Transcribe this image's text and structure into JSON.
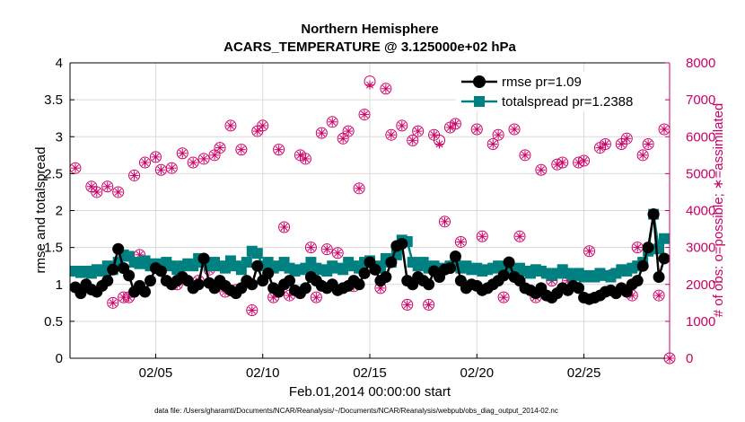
{
  "chart_data": {
    "type": "line",
    "title": [
      "Northern Hemisphere",
      "ACARS_TEMPERATURE @ 3.125000e+02 hPa"
    ],
    "xlabel": "Feb.01,2014 00:00:00 start",
    "ylabel_left": "rmse and totalspread",
    "ylabel_right": "# of obs: o=possible; ∗=assimilated",
    "footer": "data file: /Users/gharamti/Documents/NCAR/Reanalysis/~/Documents/NCAR/Reanalysis/webpub/obs_diag_output_2014-02.nc",
    "xlim": [
      1,
      29
    ],
    "x_ticks": [
      5,
      10,
      15,
      20,
      25
    ],
    "x_tick_labels": [
      "02/05",
      "02/10",
      "02/15",
      "02/20",
      "02/25"
    ],
    "ylim_left": [
      0,
      4
    ],
    "y_ticks_left": [
      0,
      0.5,
      1,
      1.5,
      2,
      2.5,
      3,
      3.5,
      4
    ],
    "y_tick_labels_left": [
      "0",
      "0.5",
      "1",
      "1.5",
      "2",
      "2.5",
      "3",
      "3.5",
      "4"
    ],
    "ylim_right": [
      0,
      8000
    ],
    "y_ticks_right": [
      0,
      1000,
      2000,
      3000,
      4000,
      5000,
      6000,
      7000,
      8000
    ],
    "y_tick_labels_right": [
      "0",
      "1000",
      "2000",
      "3000",
      "4000",
      "5000",
      "6000",
      "7000",
      "8000"
    ],
    "colors": {
      "rmse": "#000000",
      "spread": "#008080",
      "obs": "#cc0066",
      "axis": "#000000",
      "grid": "#d9d9d9"
    },
    "legend": [
      {
        "name": "rmse pr=1.09",
        "series": "rmse"
      },
      {
        "name": "totalspread pr=1.2388",
        "series": "spread"
      }
    ],
    "legend_location": "top-right",
    "series": [
      {
        "name": "rmse",
        "x": [
          1.25,
          1.5,
          1.75,
          2.0,
          2.25,
          2.5,
          2.75,
          3.0,
          3.25,
          3.5,
          3.75,
          4.0,
          4.25,
          4.5,
          4.75,
          5.0,
          5.25,
          5.5,
          5.75,
          6.0,
          6.25,
          6.5,
          6.75,
          7.0,
          7.25,
          7.5,
          7.75,
          8.0,
          8.25,
          8.5,
          8.75,
          9.0,
          9.25,
          9.5,
          9.75,
          10.0,
          10.25,
          10.5,
          10.75,
          11.0,
          11.25,
          11.5,
          11.75,
          12.0,
          12.25,
          12.5,
          12.75,
          13.0,
          13.25,
          13.5,
          13.75,
          14.0,
          14.25,
          14.5,
          14.75,
          15.0,
          15.25,
          15.5,
          15.75,
          16.0,
          16.25,
          16.5,
          16.75,
          17.0,
          17.25,
          17.5,
          17.75,
          18.0,
          18.25,
          18.5,
          18.75,
          19.0,
          19.25,
          19.5,
          19.75,
          20.0,
          20.25,
          20.5,
          20.75,
          21.0,
          21.25,
          21.5,
          21.75,
          22.0,
          22.25,
          22.5,
          22.75,
          23.0,
          23.25,
          23.5,
          23.75,
          24.0,
          24.25,
          24.5,
          24.75,
          25.0,
          25.25,
          25.5,
          25.75,
          26.0,
          26.25,
          26.5,
          26.75,
          27.0,
          27.25,
          27.5,
          27.75,
          28.0,
          28.25,
          28.5,
          28.75
        ],
        "values": [
          0.96,
          0.88,
          1.0,
          0.93,
          0.9,
          0.98,
          1.05,
          1.2,
          1.48,
          1.22,
          1.12,
          0.9,
          0.98,
          0.9,
          1.05,
          1.22,
          1.18,
          1.05,
          1.0,
          1.05,
          1.1,
          1.05,
          0.95,
          1.0,
          1.35,
          1.02,
          0.95,
          1.05,
          0.98,
          0.92,
          0.88,
          0.95,
          1.05,
          1.0,
          1.25,
          1.05,
          1.15,
          0.95,
          0.9,
          1.0,
          1.05,
          0.92,
          0.88,
          0.95,
          1.1,
          1.05,
          0.98,
          0.95,
          1.0,
          0.92,
          0.95,
          0.98,
          1.05,
          1.0,
          1.15,
          1.3,
          1.2,
          1.05,
          1.1,
          1.3,
          1.52,
          1.55,
          1.05,
          1.0,
          1.1,
          1.05,
          1.0,
          1.18,
          1.1,
          1.2,
          1.22,
          1.38,
          1.05,
          0.95,
          1.0,
          0.98,
          0.92,
          0.95,
          1.0,
          1.05,
          1.12,
          1.3,
          1.1,
          1.05,
          0.95,
          0.92,
          0.88,
          0.95,
          0.85,
          0.82,
          0.88,
          0.95,
          0.92,
          0.98,
          0.95,
          0.82,
          0.8,
          0.82,
          0.85,
          0.9,
          0.92,
          0.88,
          0.95,
          0.9,
          1.0,
          1.05,
          1.25,
          1.5,
          1.95,
          1.1,
          1.35
        ]
      },
      {
        "name": "totalspread",
        "x": [
          1.25,
          1.5,
          1.75,
          2.0,
          2.25,
          2.5,
          2.75,
          3.0,
          3.25,
          3.5,
          3.75,
          4.0,
          4.25,
          4.5,
          4.75,
          5.0,
          5.25,
          5.5,
          5.75,
          6.0,
          6.25,
          6.5,
          6.75,
          7.0,
          7.25,
          7.5,
          7.75,
          8.0,
          8.25,
          8.5,
          8.75,
          9.0,
          9.25,
          9.5,
          9.75,
          10.0,
          10.25,
          10.5,
          10.75,
          11.0,
          11.25,
          11.5,
          11.75,
          12.0,
          12.25,
          12.5,
          12.75,
          13.0,
          13.25,
          13.5,
          13.75,
          14.0,
          14.25,
          14.5,
          14.75,
          15.0,
          15.25,
          15.5,
          15.75,
          16.0,
          16.25,
          16.5,
          16.75,
          17.0,
          17.25,
          17.5,
          17.75,
          18.0,
          18.25,
          18.5,
          18.75,
          19.0,
          19.25,
          19.5,
          19.75,
          20.0,
          20.25,
          20.5,
          20.75,
          21.0,
          21.25,
          21.5,
          21.75,
          22.0,
          22.25,
          22.5,
          22.75,
          23.0,
          23.25,
          23.5,
          23.75,
          24.0,
          24.25,
          24.5,
          24.75,
          25.0,
          25.25,
          25.5,
          25.75,
          26.0,
          26.25,
          26.5,
          26.75,
          27.0,
          27.25,
          27.5,
          27.75,
          28.0,
          28.25,
          28.5,
          28.75
        ],
        "values": [
          1.18,
          1.16,
          1.18,
          1.15,
          1.2,
          1.18,
          1.25,
          1.2,
          1.3,
          1.4,
          1.38,
          1.3,
          1.28,
          1.32,
          1.25,
          1.28,
          1.22,
          1.3,
          1.25,
          1.2,
          1.25,
          1.28,
          1.25,
          1.35,
          1.3,
          1.25,
          1.3,
          1.25,
          1.22,
          1.32,
          1.25,
          1.2,
          1.3,
          1.45,
          1.42,
          1.25,
          1.3,
          1.22,
          1.25,
          1.3,
          1.22,
          1.18,
          1.2,
          1.22,
          1.3,
          1.22,
          1.2,
          1.18,
          1.25,
          1.22,
          1.2,
          1.3,
          1.25,
          1.22,
          1.3,
          1.32,
          1.25,
          1.22,
          1.35,
          1.3,
          1.4,
          1.6,
          1.58,
          1.3,
          1.25,
          1.3,
          1.22,
          1.25,
          1.2,
          1.22,
          1.25,
          1.3,
          1.22,
          1.25,
          1.2,
          1.22,
          1.18,
          1.2,
          1.22,
          1.25,
          1.22,
          1.25,
          1.2,
          1.22,
          1.18,
          1.15,
          1.2,
          1.18,
          1.15,
          1.12,
          1.15,
          1.2,
          1.15,
          1.12,
          1.15,
          1.1,
          1.12,
          1.1,
          1.15,
          1.12,
          1.1,
          1.15,
          1.2,
          1.18,
          1.22,
          1.25,
          1.3,
          1.45,
          1.95,
          1.48,
          1.62
        ]
      },
      {
        "name": "obs_possible",
        "axis": "right",
        "x": [
          1.25,
          2.0,
          2.25,
          2.75,
          3.0,
          3.25,
          3.5,
          3.75,
          4.0,
          4.25,
          4.5,
          5.0,
          5.25,
          5.75,
          6.0,
          6.25,
          6.75,
          7.0,
          7.25,
          7.5,
          7.75,
          8.0,
          8.25,
          8.5,
          8.75,
          9.0,
          9.5,
          9.75,
          10.0,
          10.5,
          10.75,
          11.0,
          11.25,
          11.75,
          12.0,
          12.25,
          12.5,
          12.75,
          13.0,
          13.25,
          13.5,
          13.75,
          14.0,
          14.25,
          14.5,
          14.75,
          15.0,
          15.25,
          15.5,
          15.75,
          16.0,
          16.5,
          16.75,
          17.0,
          17.25,
          17.75,
          18.0,
          18.25,
          18.5,
          18.75,
          19.0,
          19.25,
          19.75,
          20.0,
          20.25,
          20.75,
          21.0,
          21.25,
          21.75,
          22.0,
          22.25,
          22.75,
          23.0,
          23.25,
          23.5,
          23.75,
          24.0,
          24.25,
          24.75,
          25.0,
          25.25,
          25.75,
          26.0,
          26.25,
          26.75,
          27.0,
          27.25,
          27.5,
          27.75,
          28.0,
          28.25,
          28.5,
          28.75
        ],
        "values": [
          5150,
          4650,
          4500,
          4650,
          1500,
          4500,
          1650,
          1650,
          4950,
          2800,
          5300,
          5450,
          5100,
          5150,
          2000,
          5550,
          5300,
          2100,
          5400,
          2400,
          5500,
          5700,
          1800,
          6300,
          1850,
          5650,
          1300,
          6150,
          6300,
          1650,
          5650,
          3550,
          1700,
          5500,
          5400,
          3000,
          1650,
          6100,
          2950,
          6400,
          2850,
          5950,
          6150,
          1950,
          4600,
          6600,
          7500,
          2400,
          1900,
          7300,
          6050,
          6300,
          1450,
          5900,
          6150,
          1450,
          6050,
          5900,
          3700,
          6250,
          6350,
          3150,
          7400,
          6200,
          3300,
          5800,
          6050,
          1650,
          6200,
          3300,
          5500,
          1650,
          5100,
          1700,
          2100,
          5250,
          5300,
          2100,
          5300,
          5350,
          2900,
          5700,
          5800,
          2250,
          5800,
          5950,
          1700,
          3000,
          5500,
          5800,
          3900,
          1700,
          6200
        ]
      },
      {
        "name": "obs_assimilated",
        "axis": "right",
        "x": [
          1.25,
          2.0,
          2.25,
          2.75,
          3.0,
          3.25,
          3.5,
          3.75,
          4.0,
          4.25,
          4.5,
          5.0,
          5.25,
          5.75,
          6.0,
          6.25,
          6.75,
          7.0,
          7.25,
          7.5,
          7.75,
          8.0,
          8.25,
          8.5,
          8.75,
          9.0,
          9.5,
          9.75,
          10.0,
          10.5,
          10.75,
          11.0,
          11.25,
          11.75,
          12.0,
          12.25,
          12.5,
          12.75,
          13.0,
          13.25,
          13.5,
          13.75,
          14.0,
          14.25,
          14.5,
          14.75,
          15.0,
          15.25,
          15.5,
          15.75,
          16.0,
          16.5,
          16.75,
          17.0,
          17.25,
          17.75,
          18.0,
          18.25,
          18.5,
          18.75,
          19.0,
          19.25,
          19.75,
          20.0,
          20.25,
          20.75,
          21.0,
          21.25,
          21.75,
          22.0,
          22.25,
          22.75,
          23.0,
          23.25,
          23.5,
          23.75,
          24.0,
          24.25,
          24.75,
          25.0,
          25.25,
          25.75,
          26.0,
          26.25,
          26.75,
          27.0,
          27.25,
          27.5,
          27.75,
          28.0,
          28.25,
          28.5,
          28.75
        ],
        "values": [
          5150,
          4650,
          4500,
          4650,
          1500,
          4500,
          1650,
          1650,
          4950,
          2800,
          5300,
          5450,
          5100,
          5150,
          2000,
          5550,
          5300,
          2100,
          5400,
          2400,
          5500,
          5700,
          1800,
          6300,
          1850,
          5650,
          1300,
          6150,
          6300,
          1650,
          5650,
          3550,
          1700,
          5500,
          5400,
          3000,
          1650,
          6100,
          2950,
          6400,
          2850,
          5950,
          6150,
          1950,
          4600,
          6600,
          7400,
          2400,
          1900,
          7300,
          6050,
          6300,
          1450,
          5900,
          6150,
          1450,
          6050,
          5800,
          3700,
          6250,
          6350,
          3150,
          7350,
          6200,
          3300,
          5800,
          6050,
          1650,
          6200,
          3300,
          5500,
          1650,
          5100,
          1700,
          2100,
          5250,
          5300,
          2100,
          5300,
          5350,
          2900,
          5700,
          5800,
          2250,
          5800,
          5950,
          1700,
          3000,
          5500,
          5800,
          3900,
          1700,
          6200
        ]
      },
      {
        "name": "obs_endpoint",
        "axis": "right",
        "x": [
          29.0
        ],
        "values": [
          0
        ]
      }
    ]
  }
}
